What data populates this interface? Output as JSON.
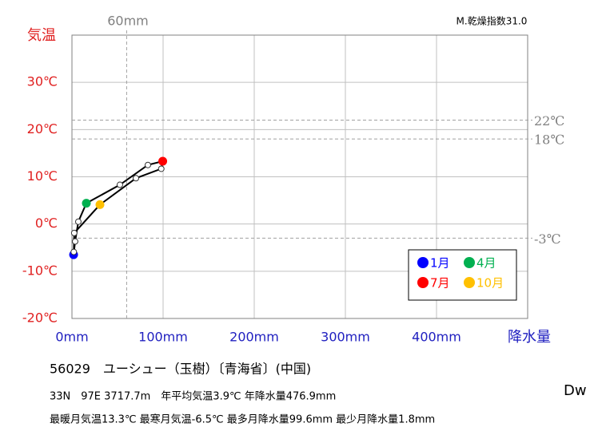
{
  "chart_data": {
    "type": "climograph",
    "index_label": "M.乾燥指数31.0",
    "y_label": "気温",
    "x_label": "降水量",
    "xlim": [
      0,
      500
    ],
    "ylim": [
      -20,
      40
    ],
    "xticks": [
      {
        "value": 0,
        "label": "0mm"
      },
      {
        "value": 100,
        "label": "100mm"
      },
      {
        "value": 200,
        "label": "200mm"
      },
      {
        "value": 300,
        "label": "300mm"
      },
      {
        "value": 400,
        "label": "400mm"
      }
    ],
    "yticks": [
      {
        "value": -20,
        "label": "-20℃"
      },
      {
        "value": -10,
        "label": "-10℃"
      },
      {
        "value": 0,
        "label": "0℃"
      },
      {
        "value": 10,
        "label": "10℃"
      },
      {
        "value": 20,
        "label": "20℃"
      },
      {
        "value": 30,
        "label": "30℃"
      }
    ],
    "ref_lines_x": [
      {
        "value": 60,
        "label": "60mm"
      }
    ],
    "ref_lines_y": [
      {
        "value": 22,
        "label": "22℃"
      },
      {
        "value": 18,
        "label": "18℃"
      },
      {
        "value": -3,
        "label": "-3℃"
      }
    ],
    "x": [
      1.8,
      3.5,
      7.0,
      15.8,
      52.6,
      83.3,
      99.6,
      98.0,
      70.2,
      30.7,
      2.5,
      2.0
    ],
    "y": [
      -6.5,
      -3.7,
      0.5,
      4.4,
      8.3,
      12.5,
      13.3,
      11.7,
      9.7,
      4.1,
      -1.9,
      -5.9
    ],
    "colors": [
      "#0000ff",
      "#ffffff",
      "#ffffff",
      "#00b050",
      "#ffffff",
      "#ffffff",
      "#ff0000",
      "#ffffff",
      "#ffffff",
      "#ffc000",
      "#ffffff",
      "#ffffff"
    ],
    "legend": [
      {
        "name": "1月",
        "color": "#0000ff"
      },
      {
        "name": "4月",
        "color": "#00b050"
      },
      {
        "name": "7月",
        "color": "#ff0000"
      },
      {
        "name": "10月",
        "color": "#ffc000"
      }
    ],
    "station": "56029　ユーシュー（玉樹）〔青海省〕(中国)",
    "info_line_1": "33N　97E 3717.7m　年平均気温3.9℃ 年降水量476.9mm",
    "info_line_2": "最暖月気温13.3℃ 最寒月気温-6.5℃ 最多月降水量99.6mm 最少月降水量1.8mm",
    "climate_code": "Dw"
  }
}
